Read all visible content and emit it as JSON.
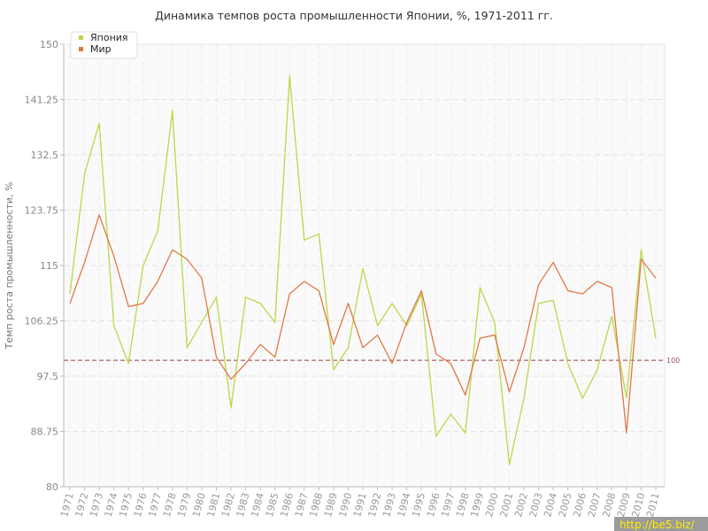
{
  "chart_data": {
    "type": "line",
    "title": "Динамика темпов роста промышленности Японии, %, 1971-2011 гг.",
    "ylabel": "Темп роста промышленности, %",
    "xlabel": "",
    "ylim": [
      80,
      150
    ],
    "yticks": [
      "80",
      "88.75",
      "97.5",
      "106.25",
      "115",
      "123.75",
      "132.5",
      "141.25",
      "150"
    ],
    "categories": [
      "1971",
      "1972",
      "1973",
      "1974",
      "1975",
      "1976",
      "1977",
      "1978",
      "1979",
      "1980",
      "1981",
      "1982",
      "1983",
      "1984",
      "1985",
      "1986",
      "1987",
      "1988",
      "1989",
      "1990",
      "1991",
      "1992",
      "1993",
      "1994",
      "1995",
      "1996",
      "1997",
      "1998",
      "1999",
      "2000",
      "2001",
      "2002",
      "2003",
      "2004",
      "2005",
      "2006",
      "2007",
      "2008",
      "2009",
      "2010",
      "2011"
    ],
    "series": [
      {
        "name": "Япония",
        "color": "#b8d94a",
        "values": [
          110.5,
          129.5,
          137.5,
          105.5,
          99.5,
          115,
          120.5,
          139.5,
          102,
          106,
          110,
          92.5,
          110,
          109,
          106,
          145,
          119,
          120,
          98.5,
          102,
          114.5,
          105.5,
          109,
          105.5,
          110.5,
          88,
          91.5,
          88.5,
          111.5,
          106,
          83.5,
          94,
          109,
          109.5,
          99.5,
          94,
          98.5,
          107,
          94,
          117.5,
          103.5
        ]
      },
      {
        "name": "Мир",
        "color": "#e07848",
        "values": [
          109,
          115.5,
          123,
          116.5,
          108.5,
          109,
          112.5,
          117.5,
          116,
          113,
          100.5,
          97,
          99.5,
          102.5,
          100.5,
          110.5,
          112.5,
          111,
          102.5,
          109,
          102,
          104,
          99.5,
          106,
          111,
          101,
          99.5,
          94.5,
          103.5,
          104,
          95,
          102,
          112,
          115.5,
          111,
          110.5,
          112.5,
          111.5,
          88.5,
          116,
          113
        ]
      }
    ],
    "reference_line": {
      "value": 100,
      "label": "100",
      "color": "#9c3a3a"
    },
    "grid": true,
    "legend_position": "top-left"
  },
  "watermark": "http://be5.biz/"
}
